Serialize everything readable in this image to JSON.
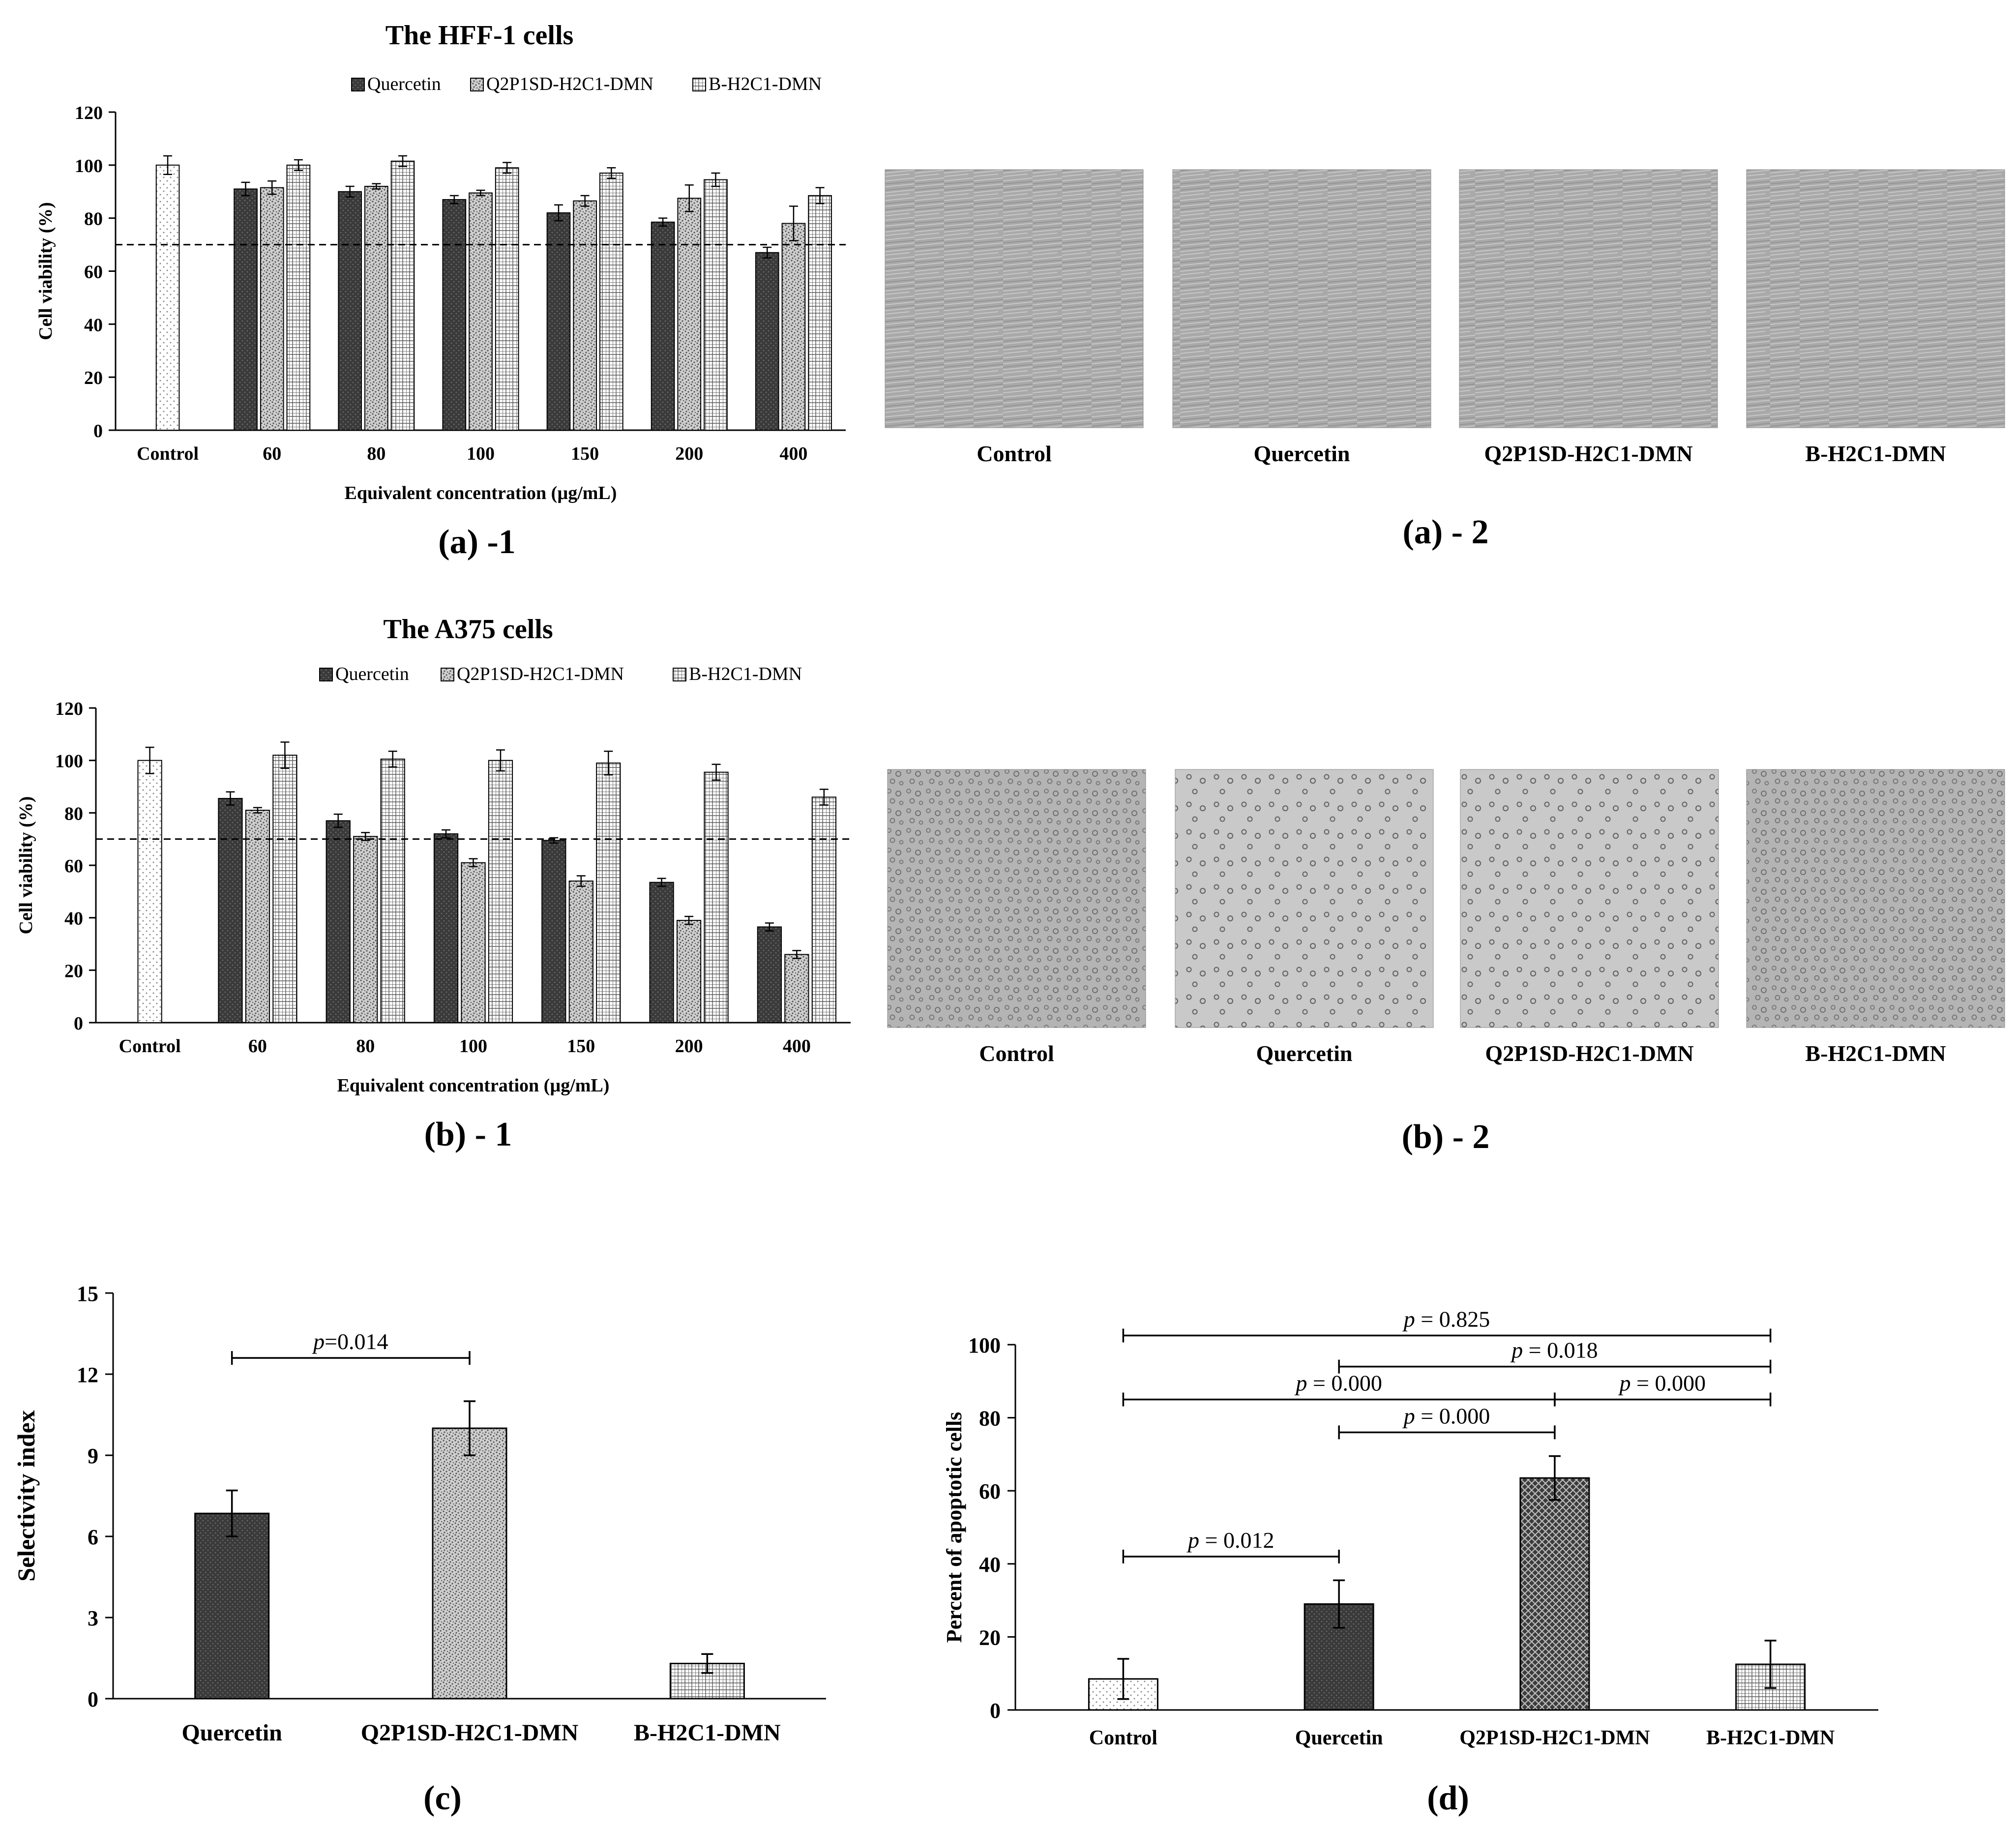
{
  "panels": {
    "a1": {
      "label": "(a) -1",
      "chart_data": {
        "type": "bar",
        "title": "The HFF-1 cells",
        "xlabel": "Equivalent concentration (µg/mL)",
        "ylabel": "Cell viability (%)",
        "ylim": [
          0,
          120
        ],
        "yticks": [
          0,
          20,
          40,
          60,
          80,
          100,
          120
        ],
        "reference_line": 70,
        "legend_position": "top",
        "legend": [
          "Quercetin",
          "Q2P1SD-H2C1-DMN",
          "B-H2C1-DMN"
        ],
        "control": {
          "label": "Control",
          "value": 100,
          "error": 3.5
        },
        "categories": [
          "60",
          "80",
          "100",
          "150",
          "200",
          "400"
        ],
        "series": [
          {
            "name": "Quercetin",
            "values": [
              91,
              90,
              87,
              82,
              78.5,
              67
            ],
            "errors": [
              2.5,
              2,
              1.5,
              3,
              1.5,
              2
            ]
          },
          {
            "name": "Q2P1SD-H2C1-DMN",
            "values": [
              91.5,
              92,
              89.5,
              86.5,
              87.5,
              78
            ],
            "errors": [
              2.5,
              1,
              1,
              2,
              5,
              6.5
            ]
          },
          {
            "name": "B-H2C1-DMN",
            "values": [
              100,
              101.5,
              99,
              97,
              94.5,
              88.5
            ],
            "errors": [
              2,
              2,
              2,
              2,
              2.5,
              3
            ]
          }
        ]
      }
    },
    "a2": {
      "label": "(a) - 2",
      "images": [
        "Control",
        "Quercetin",
        "Q2P1SD-H2C1-DMN",
        "B-H2C1-DMN"
      ]
    },
    "b1": {
      "label": "(b) - 1",
      "chart_data": {
        "type": "bar",
        "title": "The A375 cells",
        "xlabel": "Equivalent concentration (µg/mL)",
        "ylabel": "Cell viability (%)",
        "ylim": [
          0,
          120
        ],
        "yticks": [
          0,
          20,
          40,
          60,
          80,
          100,
          120
        ],
        "reference_line": 70,
        "legend_position": "top",
        "legend": [
          "Quercetin",
          "Q2P1SD-H2C1-DMN",
          "B-H2C1-DMN"
        ],
        "control": {
          "label": "Control",
          "value": 100,
          "error": 5
        },
        "categories": [
          "60",
          "80",
          "100",
          "150",
          "200",
          "400"
        ],
        "series": [
          {
            "name": "Quercetin",
            "values": [
              85.5,
              77,
              72,
              69.5,
              53.5,
              36.5
            ],
            "errors": [
              2.5,
              2.5,
              1.5,
              1,
              1.5,
              1.5
            ]
          },
          {
            "name": "Q2P1SD-H2C1-DMN",
            "values": [
              81,
              71,
              61,
              54,
              39,
              26
            ],
            "errors": [
              1,
              1.5,
              1.5,
              2,
              1.5,
              1.5
            ]
          },
          {
            "name": "B-H2C1-DMN",
            "values": [
              102,
              100.5,
              100,
              99,
              95.5,
              86
            ],
            "errors": [
              5,
              3,
              4,
              4.5,
              3,
              3
            ]
          }
        ]
      }
    },
    "b2": {
      "label": "(b) - 2",
      "images": [
        "Control",
        "Quercetin",
        "Q2P1SD-H2C1-DMN",
        "B-H2C1-DMN"
      ]
    },
    "c": {
      "label": "(c)",
      "chart_data": {
        "type": "bar",
        "ylabel": "Selectivity index",
        "ylim": [
          0,
          15
        ],
        "yticks": [
          0,
          3,
          6,
          9,
          12,
          15
        ],
        "categories": [
          "Quercetin",
          "Q2P1SD-H2C1-DMN",
          "B-H2C1-DMN"
        ],
        "values": [
          6.85,
          10,
          1.3
        ],
        "errors": [
          0.85,
          1,
          0.35
        ],
        "significance": [
          {
            "from": 0,
            "to": 1,
            "y": 12.6,
            "italic": "p",
            "text": "=0.014"
          }
        ]
      }
    },
    "d": {
      "label": "(d)",
      "chart_data": {
        "type": "bar",
        "ylabel": "Percent of apoptotic cells",
        "ylim": [
          0,
          100
        ],
        "yticks": [
          0,
          20,
          40,
          60,
          80,
          100
        ],
        "categories": [
          "Control",
          "Quercetin",
          "Q2P1SD-H2C1-DMN",
          "B-H2C1-DMN"
        ],
        "values": [
          8.5,
          29,
          63.5,
          12.5
        ],
        "errors": [
          5.5,
          6.5,
          6,
          6.5
        ],
        "significance": [
          {
            "from": 0,
            "to": 3,
            "y": 102.5,
            "italic": "p",
            "text": " = 0.825"
          },
          {
            "from": 1,
            "to": 3,
            "y": 94,
            "italic": "p",
            "text": " = 0.018"
          },
          {
            "from": 0,
            "to": 2,
            "y": 85,
            "italic": "p",
            "text": " = 0.000"
          },
          {
            "from": 2,
            "to": 3,
            "y": 85,
            "italic": "p",
            "text": " = 0.000"
          },
          {
            "from": 1,
            "to": 2,
            "y": 76,
            "italic": "p",
            "text": " = 0.000"
          },
          {
            "from": 0,
            "to": 1,
            "y": 42,
            "italic": "p",
            "text": " = 0.012"
          }
        ]
      }
    }
  }
}
